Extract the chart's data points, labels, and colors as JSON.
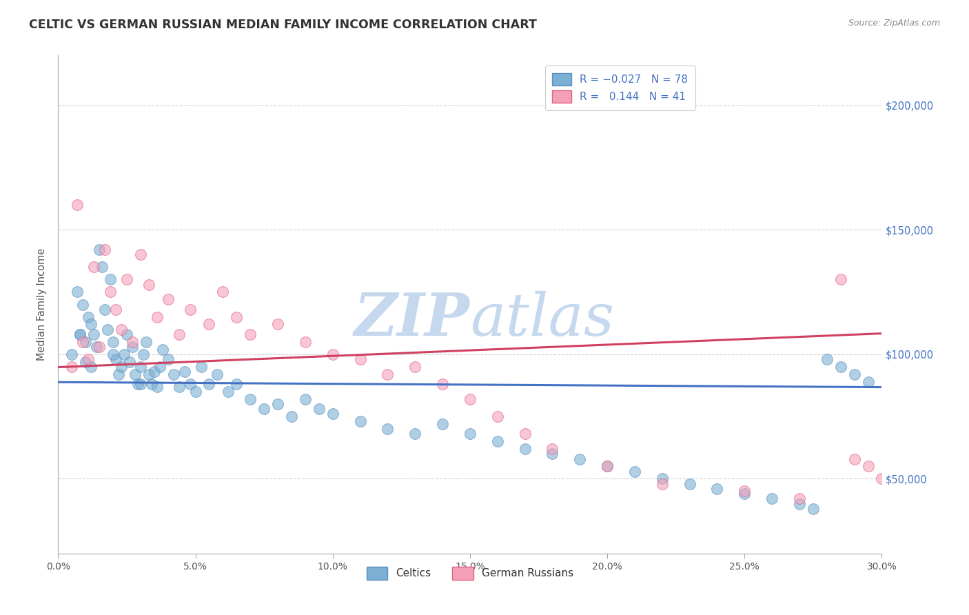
{
  "title": "CELTIC VS GERMAN RUSSIAN MEDIAN FAMILY INCOME CORRELATION CHART",
  "source_text": "Source: ZipAtlas.com",
  "ylabel": "Median Family Income",
  "xlim": [
    0.0,
    0.3
  ],
  "ylim": [
    20000,
    220000
  ],
  "xtick_labels": [
    "0.0%",
    "5.0%",
    "10.0%",
    "15.0%",
    "20.0%",
    "25.0%",
    "30.0%"
  ],
  "xtick_values": [
    0.0,
    0.05,
    0.1,
    0.15,
    0.2,
    0.25,
    0.3
  ],
  "ytick_values": [
    50000,
    100000,
    150000,
    200000
  ],
  "ytick_labels": [
    "$50,000",
    "$100,000",
    "$150,000",
    "$200,000"
  ],
  "ytick_color": "#4472c4",
  "grid_color": "#d0d0d0",
  "background_color": "#ffffff",
  "celtics_color": "#7bafd4",
  "celtics_edge_color": "#5b8fbf",
  "german_russian_color": "#f4a0b8",
  "german_russian_edge_color": "#e06080",
  "celtics_R": -0.027,
  "celtics_N": 78,
  "german_russian_R": 0.144,
  "german_russian_N": 41,
  "celtics_line_color": "#4472c4",
  "german_russian_line_color": "#d04060",
  "watermark_color": "#c5d8ee",
  "title_color": "#333333",
  "title_fontsize": 12.5,
  "legend_label_celtics": "Celtics",
  "legend_label_german": "German Russians",
  "celtics_x": [
    0.005,
    0.007,
    0.008,
    0.009,
    0.01,
    0.01,
    0.011,
    0.012,
    0.013,
    0.014,
    0.015,
    0.016,
    0.017,
    0.018,
    0.019,
    0.02,
    0.021,
    0.022,
    0.023,
    0.024,
    0.025,
    0.026,
    0.027,
    0.028,
    0.029,
    0.03,
    0.031,
    0.032,
    0.033,
    0.034,
    0.035,
    0.036,
    0.037,
    0.038,
    0.04,
    0.042,
    0.044,
    0.046,
    0.048,
    0.05,
    0.052,
    0.055,
    0.058,
    0.062,
    0.065,
    0.07,
    0.075,
    0.08,
    0.085,
    0.09,
    0.095,
    0.1,
    0.11,
    0.12,
    0.13,
    0.14,
    0.15,
    0.16,
    0.17,
    0.18,
    0.19,
    0.2,
    0.21,
    0.22,
    0.23,
    0.24,
    0.25,
    0.26,
    0.27,
    0.275,
    0.28,
    0.285,
    0.29,
    0.295,
    0.008,
    0.012,
    0.02,
    0.03
  ],
  "celtics_y": [
    100000,
    125000,
    108000,
    120000,
    105000,
    97000,
    115000,
    112000,
    108000,
    103000,
    142000,
    135000,
    118000,
    110000,
    130000,
    105000,
    98000,
    92000,
    95000,
    100000,
    108000,
    97000,
    103000,
    92000,
    88000,
    95000,
    100000,
    105000,
    92000,
    88000,
    93000,
    87000,
    95000,
    102000,
    98000,
    92000,
    87000,
    93000,
    88000,
    85000,
    95000,
    88000,
    92000,
    85000,
    88000,
    82000,
    78000,
    80000,
    75000,
    82000,
    78000,
    76000,
    73000,
    70000,
    68000,
    72000,
    68000,
    65000,
    62000,
    60000,
    58000,
    55000,
    53000,
    50000,
    48000,
    46000,
    44000,
    42000,
    40000,
    38000,
    98000,
    95000,
    92000,
    89000,
    108000,
    95000,
    100000,
    88000
  ],
  "german_x": [
    0.005,
    0.007,
    0.009,
    0.011,
    0.013,
    0.015,
    0.017,
    0.019,
    0.021,
    0.023,
    0.025,
    0.027,
    0.03,
    0.033,
    0.036,
    0.04,
    0.044,
    0.048,
    0.055,
    0.06,
    0.065,
    0.07,
    0.08,
    0.09,
    0.1,
    0.11,
    0.12,
    0.13,
    0.14,
    0.15,
    0.16,
    0.17,
    0.18,
    0.2,
    0.22,
    0.25,
    0.27,
    0.285,
    0.29,
    0.295,
    0.3
  ],
  "german_y": [
    95000,
    160000,
    105000,
    98000,
    135000,
    103000,
    142000,
    125000,
    118000,
    110000,
    130000,
    105000,
    140000,
    128000,
    115000,
    122000,
    108000,
    118000,
    112000,
    125000,
    115000,
    108000,
    112000,
    105000,
    100000,
    98000,
    92000,
    95000,
    88000,
    82000,
    75000,
    68000,
    62000,
    55000,
    48000,
    45000,
    42000,
    130000,
    58000,
    55000,
    50000
  ]
}
